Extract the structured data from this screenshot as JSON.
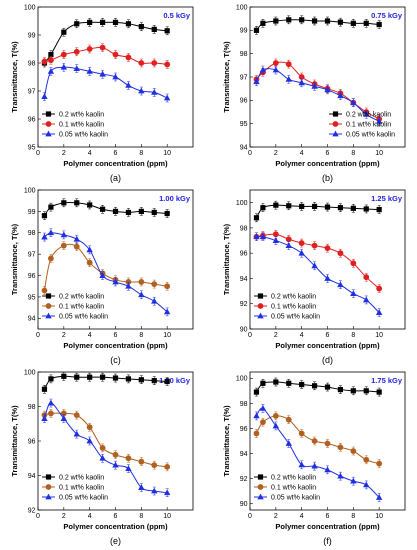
{
  "chart_data": [
    {
      "type": "line",
      "caption": "(a)",
      "dose_label": "0.5 kGy",
      "xlabel": "Polymer concentration (ppm)",
      "ylabel": "Transmittance, T(%)",
      "xlim": [
        0,
        12
      ],
      "ylim": [
        95,
        100
      ],
      "xticks": [
        0,
        2,
        4,
        6,
        8,
        10
      ],
      "yticks": [
        95,
        96,
        97,
        98,
        99,
        100
      ],
      "legend_position": "lower-left",
      "series": [
        {
          "name": "0.2 wt% kaolin",
          "color": "#000000",
          "marker": "square",
          "x": [
            0.5,
            1,
            2,
            3,
            4,
            5,
            6,
            7,
            8,
            9,
            10
          ],
          "y": [
            98.0,
            98.3,
            99.1,
            99.4,
            99.45,
            99.45,
            99.45,
            99.4,
            99.3,
            99.2,
            99.15
          ]
        },
        {
          "name": "0.1 wt% kaolin",
          "color": "#e02020",
          "marker": "circle",
          "x": [
            0.5,
            1,
            2,
            3,
            4,
            5,
            6,
            7,
            8,
            9,
            10
          ],
          "y": [
            98.05,
            98.1,
            98.3,
            98.4,
            98.5,
            98.55,
            98.3,
            98.2,
            98.0,
            98.0,
            97.95
          ]
        },
        {
          "name": "0.05 wt% kaolin",
          "color": "#2030e0",
          "marker": "triangle",
          "x": [
            0.5,
            1,
            2,
            3,
            4,
            5,
            6,
            7,
            8,
            9,
            10
          ],
          "y": [
            96.8,
            97.7,
            97.85,
            97.8,
            97.7,
            97.6,
            97.5,
            97.2,
            97.0,
            96.95,
            96.75
          ]
        }
      ]
    },
    {
      "type": "line",
      "caption": "(b)",
      "dose_label": "0.75 kGy",
      "xlabel": "Polymer concentration (ppm)",
      "ylabel": "Transmittance, T(%)",
      "xlim": [
        0,
        12
      ],
      "ylim": [
        94,
        100
      ],
      "xticks": [
        0,
        2,
        4,
        6,
        8,
        10
      ],
      "yticks": [
        94,
        95,
        96,
        97,
        98,
        99,
        100
      ],
      "legend_position": "lower-right",
      "series": [
        {
          "name": "0.2 wt% kaolin",
          "color": "#000000",
          "marker": "square",
          "x": [
            0.5,
            1,
            2,
            3,
            4,
            5,
            6,
            7,
            8,
            9,
            10
          ],
          "y": [
            99.0,
            99.3,
            99.4,
            99.45,
            99.45,
            99.4,
            99.4,
            99.35,
            99.3,
            99.3,
            99.25
          ]
        },
        {
          "name": "0.1 wt% kaolin",
          "color": "#e02020",
          "marker": "circle",
          "x": [
            0.5,
            1,
            2,
            3,
            4,
            5,
            6,
            7,
            8,
            9,
            10
          ],
          "y": [
            96.9,
            97.2,
            97.6,
            97.55,
            97.0,
            96.7,
            96.5,
            96.3,
            95.9,
            95.5,
            95.2
          ]
        },
        {
          "name": "0.05 wt% kaolin",
          "color": "#2030e0",
          "marker": "triangle",
          "x": [
            0.5,
            1,
            2,
            3,
            4,
            5,
            6,
            7,
            8,
            9,
            10
          ],
          "y": [
            96.8,
            97.3,
            97.3,
            96.9,
            96.75,
            96.6,
            96.45,
            96.2,
            95.9,
            95.4,
            95.1
          ]
        }
      ]
    },
    {
      "type": "line",
      "caption": "(c)",
      "dose_label": "1.00 kGy",
      "xlabel": "Polymer concentration (ppm)",
      "ylabel": "Transmittance, T(%)",
      "xlim": [
        0,
        12
      ],
      "ylim": [
        93.5,
        100
      ],
      "xticks": [
        0,
        2,
        4,
        6,
        8,
        10
      ],
      "yticks": [
        94,
        95,
        96,
        97,
        98,
        99,
        100
      ],
      "legend_position": "lower-left",
      "series": [
        {
          "name": "0.2 wt% kaolin",
          "color": "#000000",
          "marker": "square",
          "x": [
            0.5,
            1,
            2,
            3,
            4,
            5,
            6,
            7,
            8,
            9,
            10
          ],
          "y": [
            98.8,
            99.2,
            99.4,
            99.4,
            99.3,
            99.1,
            99.0,
            98.95,
            99.0,
            98.95,
            98.9
          ]
        },
        {
          "name": "0.1 wt% kaolin",
          "color": "#b06020",
          "marker": "circle",
          "x": [
            0.5,
            1,
            2,
            3,
            4,
            5,
            6,
            7,
            8,
            9,
            10
          ],
          "y": [
            95.3,
            96.8,
            97.4,
            97.35,
            96.6,
            96.1,
            95.8,
            95.7,
            95.7,
            95.6,
            95.5
          ]
        },
        {
          "name": "0.05 wt% kaolin",
          "color": "#2030e0",
          "marker": "triangle",
          "x": [
            0.5,
            1,
            2,
            3,
            4,
            5,
            6,
            7,
            8,
            9,
            10
          ],
          "y": [
            97.8,
            98.0,
            97.9,
            97.7,
            97.2,
            96.0,
            95.7,
            95.5,
            95.1,
            94.8,
            94.3
          ]
        }
      ]
    },
    {
      "type": "line",
      "caption": "(d)",
      "dose_label": "1.25 kGy",
      "xlabel": "Polymer concentration (ppm)",
      "ylabel": "Transmittance, T(%)",
      "xlim": [
        0,
        12
      ],
      "ylim": [
        90,
        101
      ],
      "xticks": [
        0,
        2,
        4,
        6,
        8,
        10
      ],
      "yticks": [
        90,
        92,
        94,
        96,
        98,
        100
      ],
      "legend_position": "lower-left",
      "series": [
        {
          "name": "0.2 wt% kaolin",
          "color": "#000000",
          "marker": "square",
          "x": [
            0.5,
            1,
            2,
            3,
            4,
            5,
            6,
            7,
            8,
            9,
            10
          ],
          "y": [
            98.8,
            99.6,
            99.8,
            99.75,
            99.7,
            99.7,
            99.65,
            99.6,
            99.55,
            99.5,
            99.45
          ]
        },
        {
          "name": "0.1 wt% kaolin",
          "color": "#e02020",
          "marker": "circle",
          "x": [
            0.5,
            1,
            2,
            3,
            4,
            5,
            6,
            7,
            8,
            9,
            10
          ],
          "y": [
            97.3,
            97.4,
            97.5,
            97.1,
            96.8,
            96.6,
            96.4,
            96.0,
            95.2,
            94.1,
            93.2
          ]
        },
        {
          "name": "0.05 wt% kaolin",
          "color": "#2030e0",
          "marker": "triangle",
          "x": [
            0.5,
            1,
            2,
            3,
            4,
            5,
            6,
            7,
            8,
            9,
            10
          ],
          "y": [
            97.3,
            97.3,
            97.0,
            96.6,
            96.0,
            95.0,
            94.0,
            93.5,
            92.8,
            92.3,
            91.3
          ]
        }
      ]
    },
    {
      "type": "line",
      "caption": "(e)",
      "dose_label": "1.50 kGy",
      "xlabel": "Polymer concentration (ppm)",
      "ylabel": "Transmittance, T(%)",
      "xlim": [
        0,
        12
      ],
      "ylim": [
        92,
        100
      ],
      "xticks": [
        0,
        2,
        4,
        6,
        8,
        10
      ],
      "yticks": [
        92,
        94,
        96,
        98,
        100
      ],
      "legend_position": "lower-left",
      "series": [
        {
          "name": "0.2 wt% kaolin",
          "color": "#000000",
          "marker": "square",
          "x": [
            0.5,
            1,
            2,
            3,
            4,
            5,
            6,
            7,
            8,
            9,
            10
          ],
          "y": [
            99.0,
            99.6,
            99.75,
            99.7,
            99.7,
            99.7,
            99.65,
            99.6,
            99.55,
            99.5,
            99.45
          ]
        },
        {
          "name": "0.1 wt% kaolin",
          "color": "#b06020",
          "marker": "circle",
          "x": [
            0.5,
            1,
            2,
            3,
            4,
            5,
            6,
            7,
            8,
            9,
            10
          ],
          "y": [
            97.5,
            97.6,
            97.6,
            97.5,
            96.8,
            95.6,
            95.2,
            95.0,
            94.8,
            94.6,
            94.5
          ]
        },
        {
          "name": "0.05 wt% kaolin",
          "color": "#2030e0",
          "marker": "triangle",
          "x": [
            0.5,
            1,
            2,
            3,
            4,
            5,
            6,
            7,
            8,
            9,
            10
          ],
          "y": [
            97.3,
            98.2,
            97.3,
            96.4,
            96.0,
            95.0,
            94.6,
            94.4,
            93.3,
            93.1,
            93.0
          ]
        }
      ]
    },
    {
      "type": "line",
      "caption": "(f)",
      "dose_label": "1.75 kGy",
      "xlabel": "Polymer concentration (ppm)",
      "ylabel": "Transmittance, T(%)",
      "xlim": [
        0,
        12
      ],
      "ylim": [
        89.5,
        100.5
      ],
      "xticks": [
        0,
        2,
        4,
        6,
        8,
        10
      ],
      "yticks": [
        90,
        92,
        94,
        96,
        98,
        100
      ],
      "legend_position": "lower-left",
      "series": [
        {
          "name": "0.2 wt% kaolin",
          "color": "#000000",
          "marker": "square",
          "x": [
            0.5,
            1,
            2,
            3,
            4,
            5,
            6,
            7,
            8,
            9,
            10
          ],
          "y": [
            98.9,
            99.6,
            99.7,
            99.6,
            99.5,
            99.4,
            99.3,
            99.1,
            99.0,
            99.0,
            98.9
          ]
        },
        {
          "name": "0.1 wt% kaolin",
          "color": "#b06020",
          "marker": "circle",
          "x": [
            0.5,
            1,
            2,
            3,
            4,
            5,
            6,
            7,
            8,
            9,
            10
          ],
          "y": [
            95.6,
            96.5,
            97.0,
            96.7,
            95.6,
            95.0,
            94.8,
            94.5,
            94.2,
            93.5,
            93.2
          ]
        },
        {
          "name": "0.05 wt% kaolin",
          "color": "#2030e0",
          "marker": "triangle",
          "x": [
            0.5,
            1,
            2,
            3,
            4,
            5,
            6,
            7,
            8,
            9,
            10
          ],
          "y": [
            97.0,
            97.6,
            96.2,
            94.8,
            93.1,
            93.0,
            92.7,
            92.2,
            91.8,
            91.5,
            90.5
          ]
        }
      ]
    }
  ]
}
